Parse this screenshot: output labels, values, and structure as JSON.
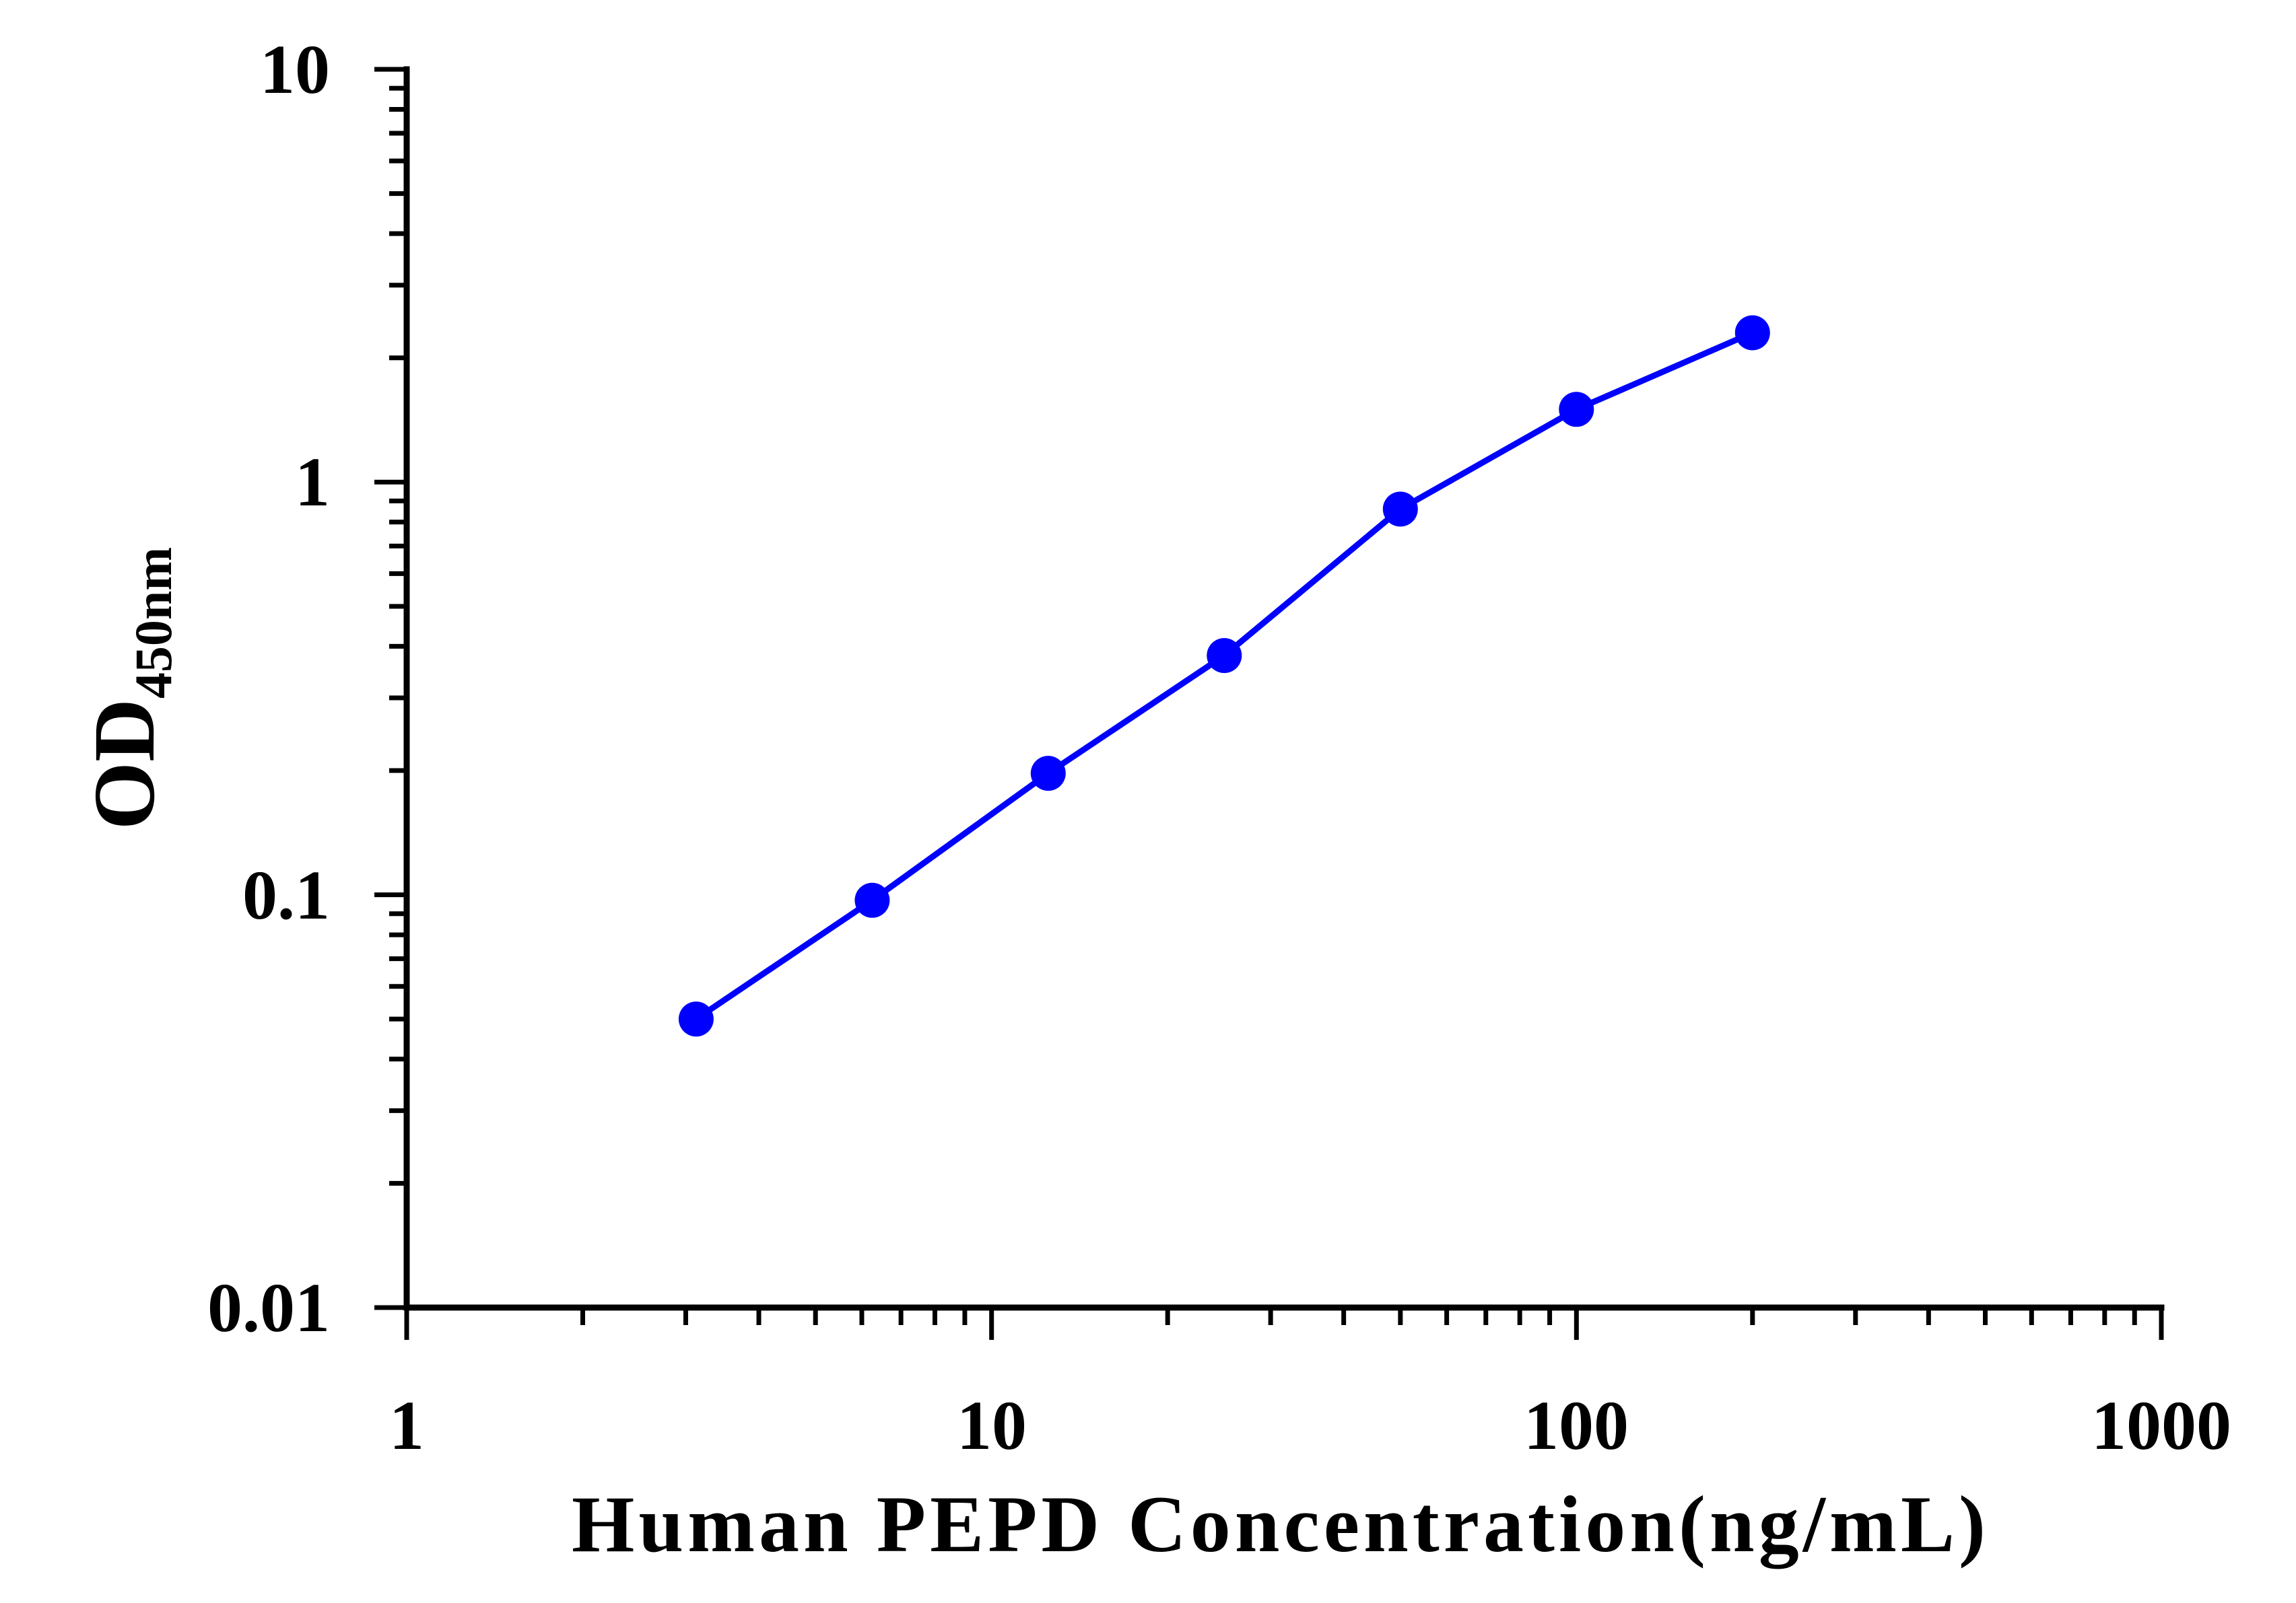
{
  "chart_data": {
    "type": "line",
    "xscale": "log",
    "yscale": "log",
    "xlim": [
      1,
      1000
    ],
    "ylim": [
      0.01,
      10
    ],
    "x_ticks": [
      "1",
      "10",
      "100",
      "1000"
    ],
    "y_ticks": [
      "0.01",
      "0.1",
      "1",
      "10"
    ],
    "xlabel": "Human PEPD Concentration(ng/mL)",
    "ylabel_main": "OD",
    "ylabel_sub": "450nm",
    "grid": false,
    "series": [
      {
        "color": "#0000ff",
        "x": [
          3.125,
          6.25,
          12.5,
          25,
          50,
          100,
          200
        ],
        "y": [
          0.05,
          0.097,
          0.197,
          0.38,
          0.86,
          1.5,
          2.3
        ]
      }
    ]
  }
}
